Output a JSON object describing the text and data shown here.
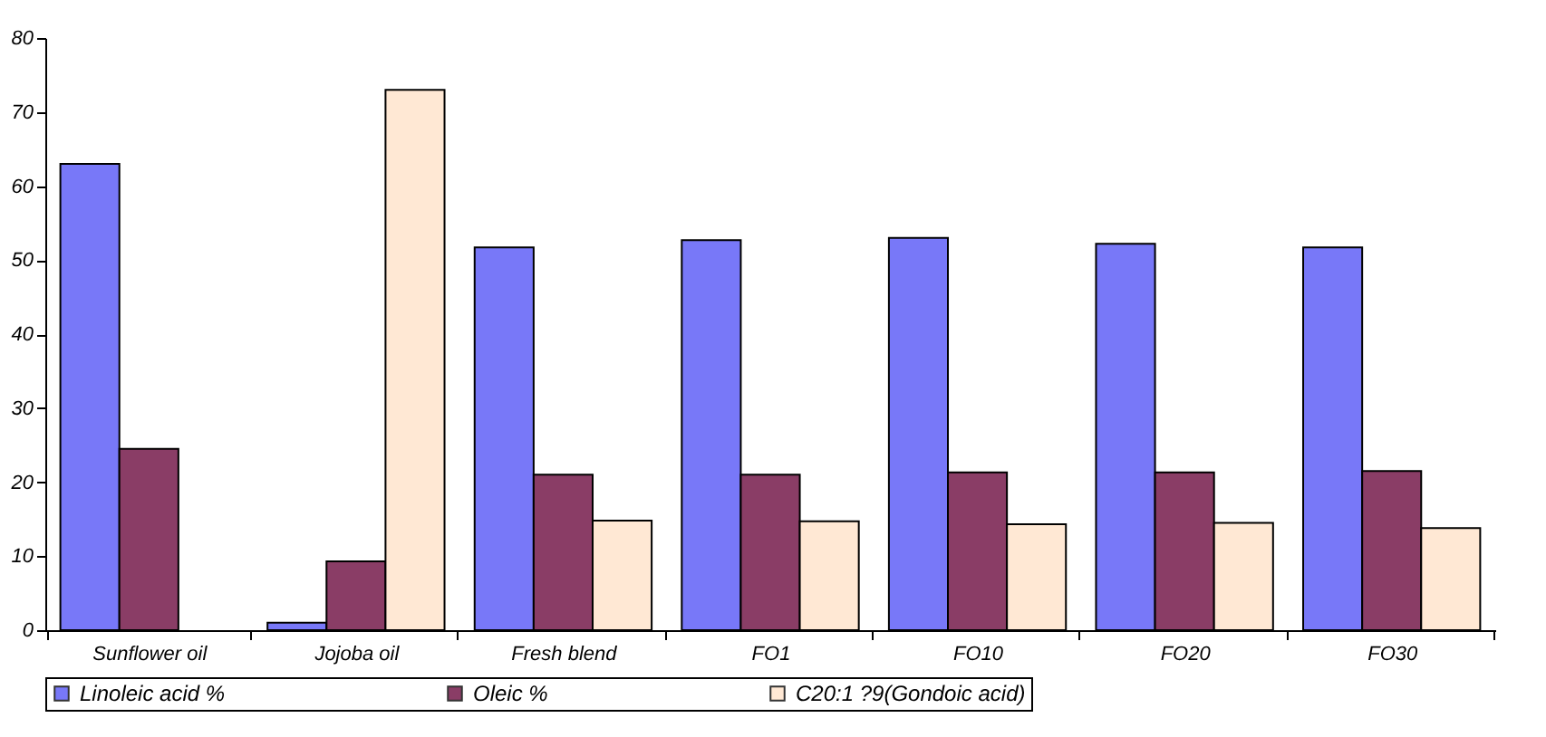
{
  "chart_data": {
    "type": "bar",
    "categories": [
      "Sunflower oil",
      "Jojoba oil",
      "Fresh blend",
      "FO1",
      "FO10",
      "FO20",
      "FO30"
    ],
    "series": [
      {
        "name": "Linoleic acid %",
        "color": "#7878f8",
        "values": [
          63,
          1,
          51.7,
          52.7,
          53,
          52.2,
          51.7
        ]
      },
      {
        "name": "Oleic %",
        "color": "#8a3d66",
        "values": [
          24.5,
          9.3,
          21,
          21,
          21.3,
          21.3,
          21.5
        ]
      },
      {
        "name": "C20:1 ?9(Gondoic acid)",
        "color": "#ffe8d4",
        "values": [
          null,
          73,
          14.8,
          14.7,
          14.3,
          14.5,
          13.8
        ]
      }
    ],
    "ylim": [
      0,
      80
    ],
    "yticks": [
      0,
      10,
      20,
      30,
      40,
      50,
      60,
      70,
      80
    ],
    "grid": false,
    "legend": "bottom"
  }
}
